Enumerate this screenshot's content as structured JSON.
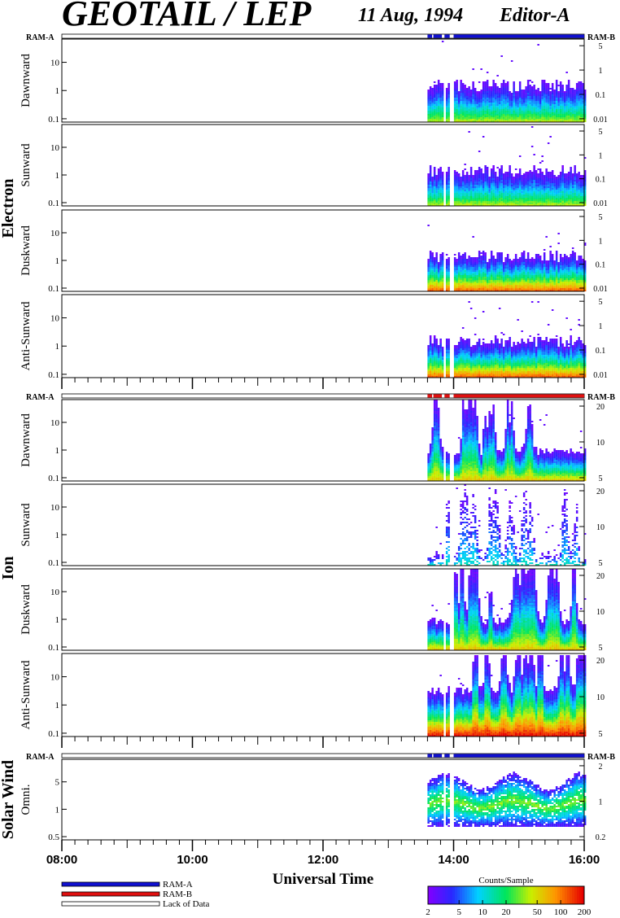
{
  "header": {
    "title": "GEOTAIL / LEP",
    "date": "11 Aug, 1994",
    "editor": "Editor-A"
  },
  "colors": {
    "ram_a": "#1010d0",
    "ram_b": "#e01010",
    "frame": "#000000",
    "background": "#ffffff"
  },
  "groups": [
    {
      "label": "Electron",
      "ram_left": "RAM-A",
      "ram_right": "RAM-B",
      "mode_segments": [
        {
          "start": 13.6,
          "end": 13.67,
          "mode": "ram_a"
        },
        {
          "start": 13.69,
          "end": 13.82,
          "mode": "ram_a"
        },
        {
          "start": 13.86,
          "end": 13.94,
          "mode": "ram_a"
        },
        {
          "start": 14.0,
          "end": 16.0,
          "mode": "ram_a"
        }
      ],
      "panels": [
        {
          "label": "Dawnward",
          "left_ticks": [
            "10",
            "1",
            "0.1"
          ],
          "right_ticks": [
            "5",
            "1",
            "0.1",
            "0.01"
          ],
          "style": "electron",
          "seed": 11
        },
        {
          "label": "Sunward",
          "left_ticks": [
            "10",
            "1",
            "0.1"
          ],
          "right_ticks": [
            "5",
            "1",
            "0.1",
            "0.01"
          ],
          "style": "electron",
          "seed": 23
        },
        {
          "label": "Duskward",
          "left_ticks": [
            "10",
            "1",
            "0.1"
          ],
          "right_ticks": [
            "5",
            "1",
            "0.1",
            "0.01"
          ],
          "style": "electron-strong",
          "seed": 37
        },
        {
          "label": "Anti-Sunward",
          "left_ticks": [
            "10",
            "1",
            "0.1"
          ],
          "right_ticks": [
            "5",
            "1",
            "0.1",
            "0.01"
          ],
          "style": "electron-strong",
          "seed": 41
        }
      ]
    },
    {
      "label": "Ion",
      "ram_left": "RAM-A",
      "ram_right": "RAM-B",
      "mode_segments": [
        {
          "start": 13.6,
          "end": 13.67,
          "mode": "ram_b"
        },
        {
          "start": 13.69,
          "end": 13.82,
          "mode": "ram_b"
        },
        {
          "start": 13.86,
          "end": 13.94,
          "mode": "ram_b"
        },
        {
          "start": 14.0,
          "end": 16.0,
          "mode": "ram_b"
        }
      ],
      "panels": [
        {
          "label": "Dawnward",
          "left_ticks": [
            "10",
            "1",
            "0.1"
          ],
          "right_ticks": [
            "20",
            "10",
            "5"
          ],
          "style": "ion",
          "seed": 53
        },
        {
          "label": "Sunward",
          "left_ticks": [
            "10",
            "1",
            "0.1"
          ],
          "right_ticks": [
            "20",
            "10",
            "5"
          ],
          "style": "ion-weak",
          "seed": 61
        },
        {
          "label": "Duskward",
          "left_ticks": [
            "10",
            "1",
            "0.1"
          ],
          "right_ticks": [
            "20",
            "10",
            "5"
          ],
          "style": "ion",
          "seed": 73
        },
        {
          "label": "Anti-Sunward",
          "left_ticks": [
            "10",
            "1",
            "0.1"
          ],
          "right_ticks": [
            "20",
            "10",
            "5"
          ],
          "style": "ion-strong",
          "seed": 89
        }
      ]
    },
    {
      "label": "Solar Wind",
      "ram_left": "RAM-A",
      "ram_right": "RAM-B",
      "mode_segments": [
        {
          "start": 13.6,
          "end": 13.67,
          "mode": "ram_a"
        },
        {
          "start": 13.69,
          "end": 13.82,
          "mode": "ram_a"
        },
        {
          "start": 13.86,
          "end": 13.94,
          "mode": "ram_a"
        },
        {
          "start": 14.0,
          "end": 16.0,
          "mode": "ram_a"
        }
      ],
      "panels": [
        {
          "label": "Omni.",
          "left_ticks": [
            "5",
            "1",
            "0.5"
          ],
          "right_ticks": [
            "2",
            "1",
            "0.2"
          ],
          "style": "solarwind",
          "seed": 97
        }
      ]
    }
  ],
  "chart_data": {
    "type": "heatmap",
    "title": "GEOTAIL / LEP",
    "xlabel": "Universal Time",
    "x_ticks": [
      "08:00",
      "10:00",
      "12:00",
      "14:00",
      "16:00"
    ],
    "xlim": [
      "08:00",
      "16:00"
    ],
    "data_coverage": {
      "start": "13:36",
      "end": "16:00"
    },
    "y_scale": "log",
    "colorbar": {
      "label": "Counts/Sample",
      "ticks": [
        "2",
        "5",
        "10",
        "20",
        "50",
        "100",
        "200"
      ],
      "scale": "log",
      "range": [
        2,
        200
      ]
    }
  },
  "legend": {
    "items": [
      {
        "label": "RAM-A",
        "color": "#1010d0"
      },
      {
        "label": "RAM-B",
        "color": "#e01010"
      },
      {
        "label": "Lack of Data",
        "color": "#ffffff"
      }
    ]
  }
}
